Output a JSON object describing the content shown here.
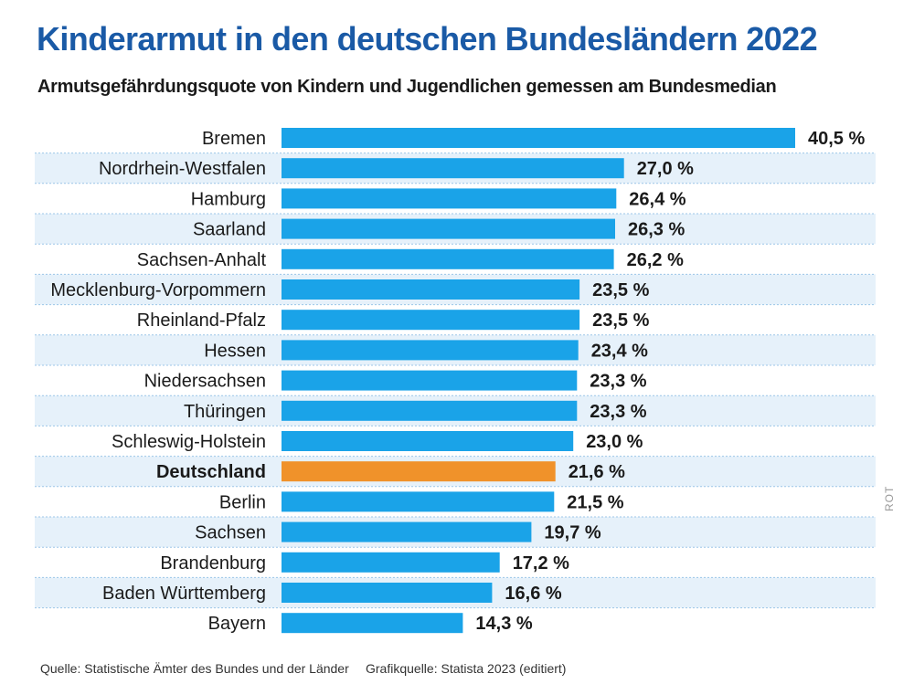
{
  "title": "Kinderarmut in den deutschen Bundesländern 2022",
  "subtitle": "Armutsgefährdungsquote von Kindern und Jugendlichen gemessen am Bundesmedian",
  "source_left": "Quelle: Statistische Ämter des Bundes und der Länder",
  "source_right": "Grafikquelle: Statista 2023 (editiert)",
  "side_credit": "ROT",
  "colors": {
    "bar": "#1aa3e8",
    "highlight_bar": "#f0922a",
    "stripe": "#e6f1fa",
    "stripe_border": "#9cc6e8",
    "text": "#1a1a1a"
  },
  "chart_data": {
    "type": "bar",
    "orientation": "horizontal",
    "title": "Kinderarmut in den deutschen Bundesländern 2022",
    "subtitle": "Armutsgefährdungsquote von Kindern und Jugendlichen gemessen am Bundesmedian",
    "xlabel": "",
    "ylabel": "",
    "xlim": [
      0,
      40.5
    ],
    "grid": false,
    "legend": "none",
    "unit": "%",
    "highlight": "Deutschland",
    "categories": [
      "Bremen",
      "Nordrhein-Westfalen",
      "Hamburg",
      "Saarland",
      "Sachsen-Anhalt",
      "Mecklenburg-Vorpommern",
      "Rheinland-Pfalz",
      "Hessen",
      "Niedersachsen",
      "Thüringen",
      "Schleswig-Holstein",
      "Deutschland",
      "Berlin",
      "Sachsen",
      "Brandenburg",
      "Baden Württemberg",
      "Bayern"
    ],
    "values": [
      40.5,
      27.0,
      26.4,
      26.3,
      26.2,
      23.5,
      23.5,
      23.4,
      23.3,
      23.3,
      23.0,
      21.6,
      21.5,
      19.7,
      17.2,
      16.6,
      14.3
    ],
    "value_labels": [
      "40,5 %",
      "27,0 %",
      "26,4 %",
      "26,3 %",
      "26,2 %",
      "23,5 %",
      "23,5 %",
      "23,4 %",
      "23,3 %",
      "23,3 %",
      "23,0 %",
      "21,6 %",
      "21,5 %",
      "19,7 %",
      "17,2 %",
      "16,6 %",
      "14,3 %"
    ]
  }
}
